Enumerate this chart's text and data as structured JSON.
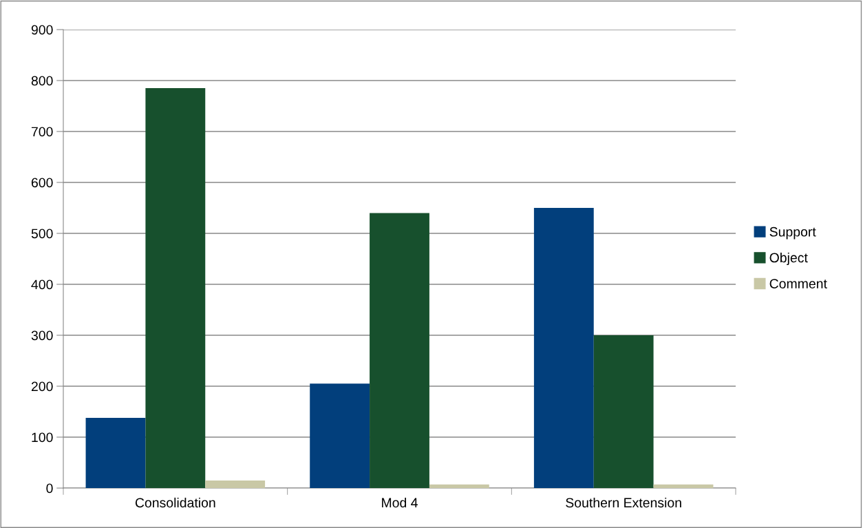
{
  "chart_data": {
    "type": "bar",
    "categories": [
      "Consolidation",
      "Mod 4",
      "Southern Extension"
    ],
    "series": [
      {
        "name": "Support",
        "color": "#023f7c",
        "values": [
          138,
          205,
          550
        ]
      },
      {
        "name": "Object",
        "color": "#17502d",
        "values": [
          785,
          540,
          300
        ]
      },
      {
        "name": "Comment",
        "color": "#c9c8a6",
        "values": [
          15,
          7,
          7
        ]
      }
    ],
    "ylim": [
      0,
      900
    ],
    "yticks": [
      0,
      100,
      200,
      300,
      400,
      500,
      600,
      700,
      800,
      900
    ],
    "grid": "y",
    "legend": "right"
  }
}
